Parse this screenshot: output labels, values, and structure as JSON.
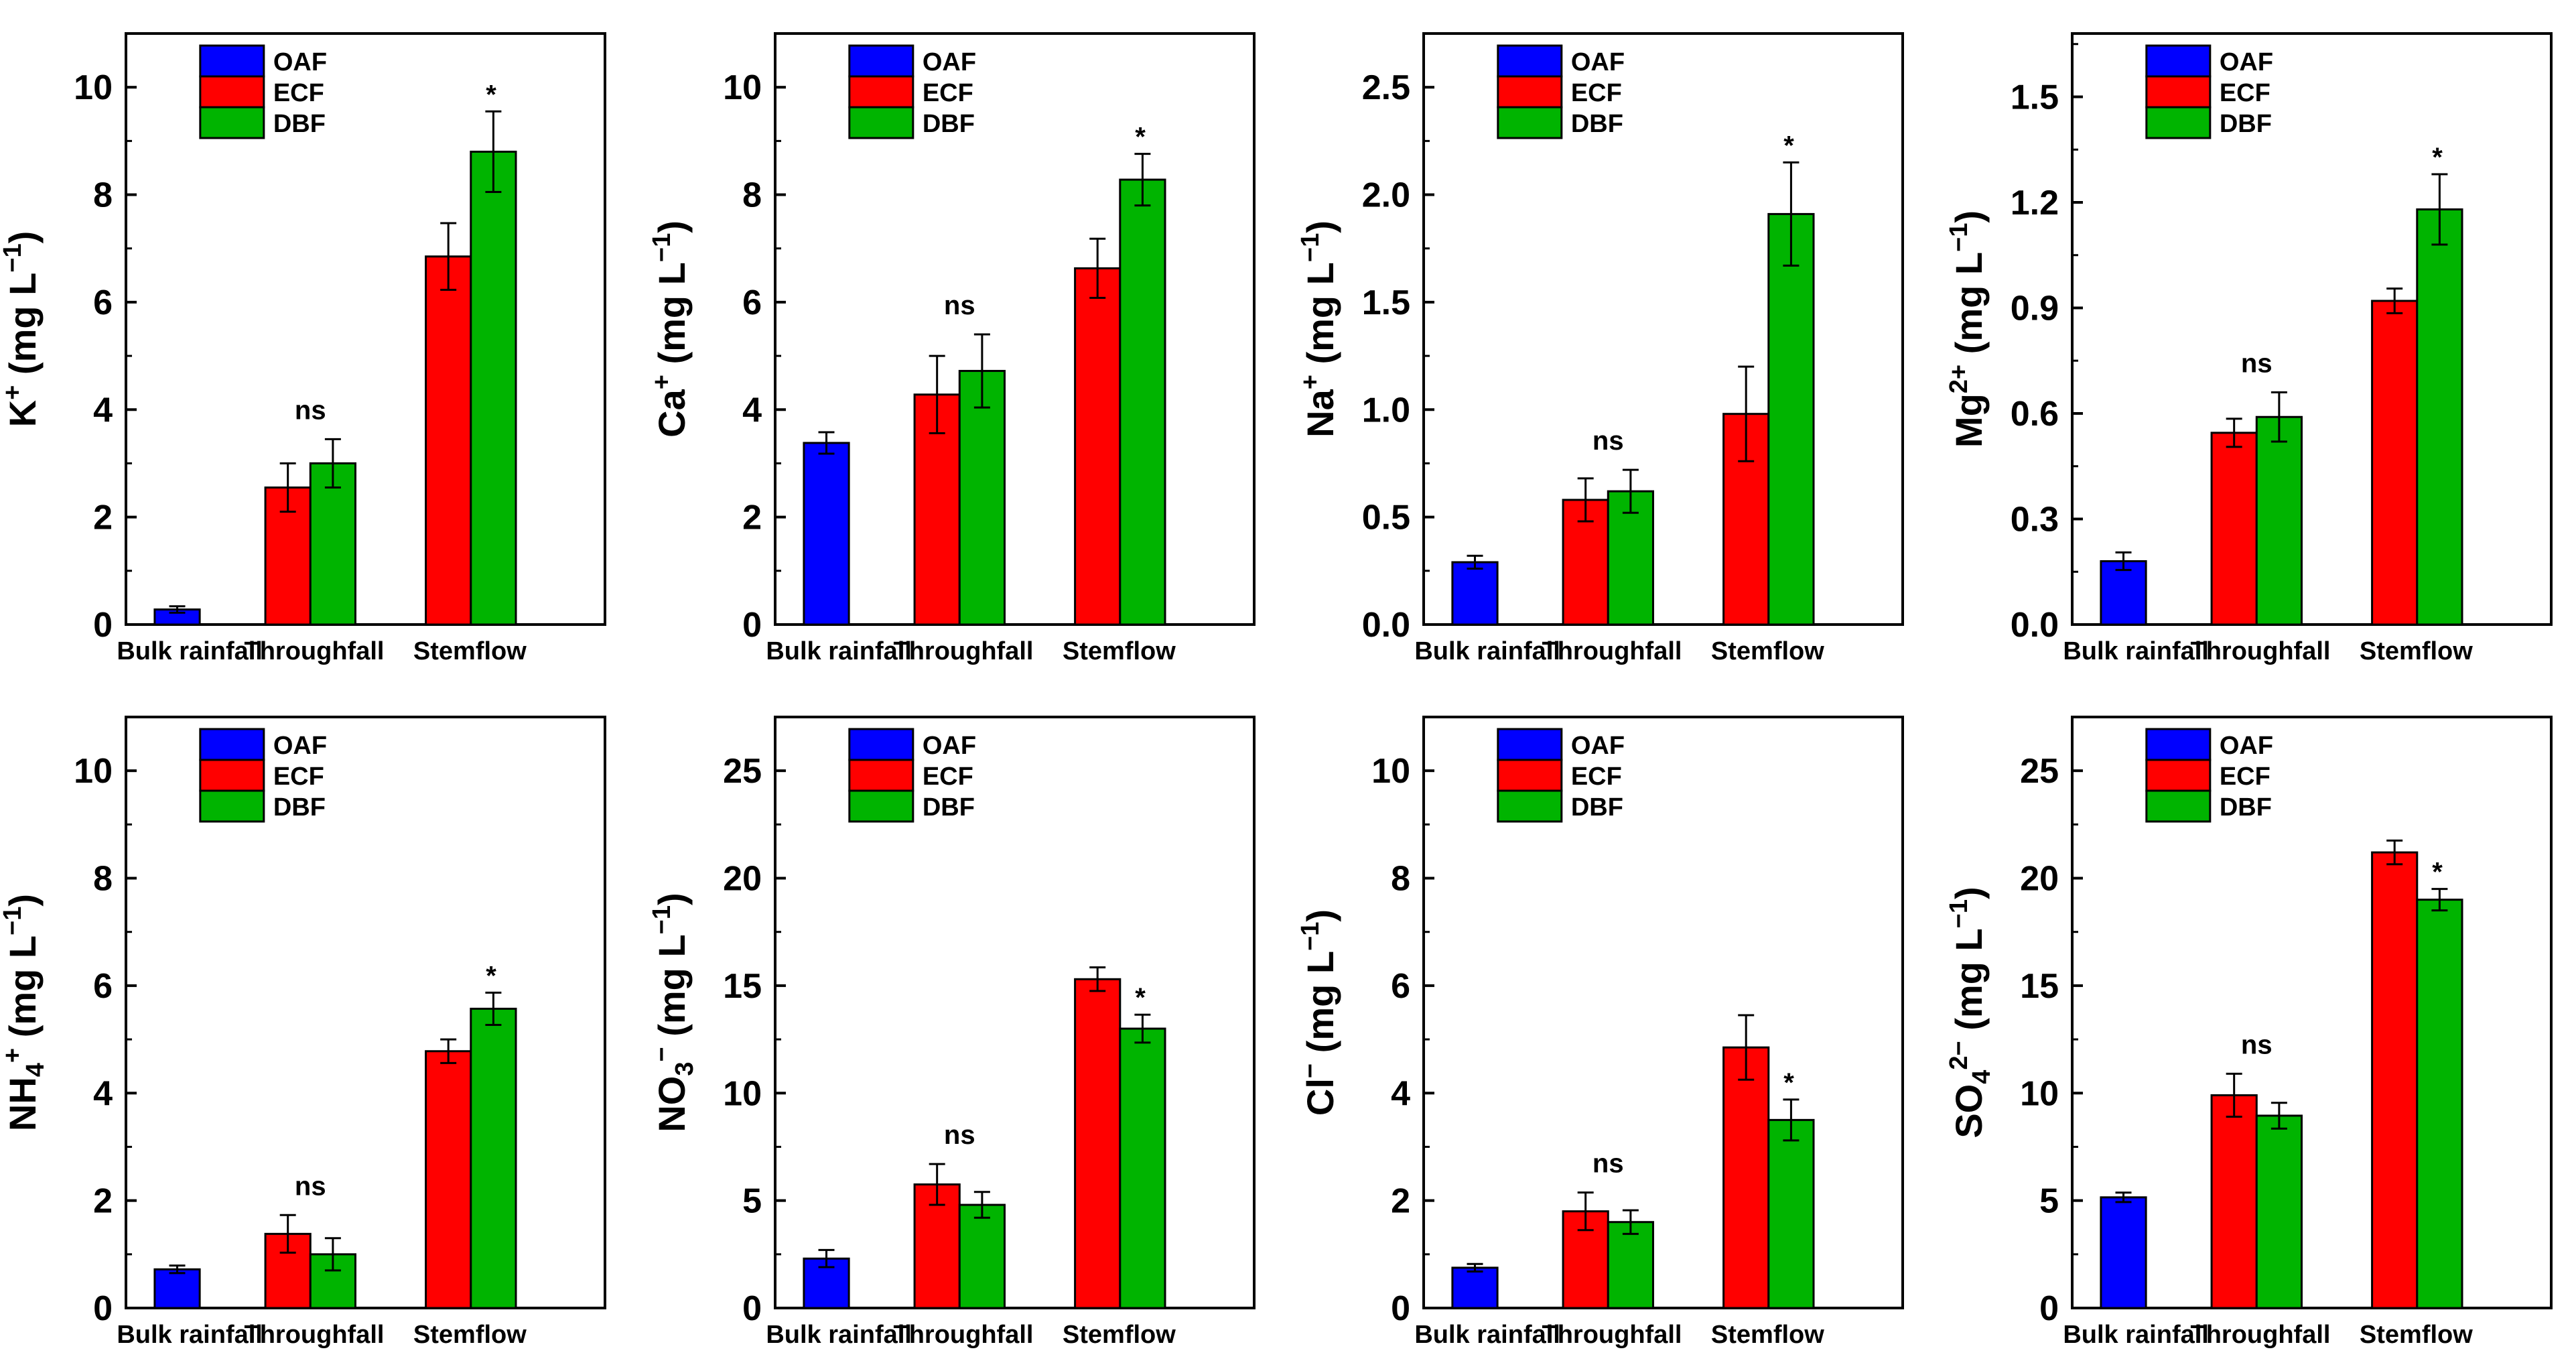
{
  "chart_data": [
    {
      "type": "bar",
      "id": "k",
      "ylabel": {
        "main": "K",
        "sub": "",
        "sup": "+",
        "unit": " (mg L",
        "unitSup": "−1",
        "close": ")"
      },
      "categories": [
        "Bulk rainfall",
        "Throughfall",
        "Stemflow"
      ],
      "legend": [
        "OAF",
        "ECF",
        "DBF"
      ],
      "colors": {
        "OAF": "#0000ff",
        "ECF": "#ff0000",
        "DBF": "#00b400"
      },
      "ylim": [
        0,
        11
      ],
      "yticks": [
        "0",
        "2",
        "4",
        "6",
        "8",
        "10"
      ],
      "ytickValues": [
        0,
        2,
        4,
        6,
        8,
        10
      ],
      "series": [
        {
          "name": "OAF",
          "values": [
            0.28,
            null,
            null
          ],
          "errors": [
            0.06,
            null,
            null
          ]
        },
        {
          "name": "ECF",
          "values": [
            null,
            2.55,
            6.85
          ],
          "errors": [
            null,
            0.45,
            0.62
          ]
        },
        {
          "name": "DBF",
          "values": [
            null,
            3.0,
            8.8
          ],
          "errors": [
            null,
            0.45,
            0.75
          ]
        }
      ],
      "significance": [
        null,
        "ns",
        "*"
      ]
    },
    {
      "type": "bar",
      "id": "ca",
      "ylabel": {
        "main": "Ca",
        "sub": "",
        "sup": "+",
        "unit": " (mg L",
        "unitSup": "−1",
        "close": ")"
      },
      "categories": [
        "Bulk rainfall",
        "Throughfall",
        "Stemflow"
      ],
      "legend": [
        "OAF",
        "ECF",
        "DBF"
      ],
      "colors": {
        "OAF": "#0000ff",
        "ECF": "#ff0000",
        "DBF": "#00b400"
      },
      "ylim": [
        0,
        11
      ],
      "yticks": [
        "0",
        "2",
        "4",
        "6",
        "8",
        "10"
      ],
      "ytickValues": [
        0,
        2,
        4,
        6,
        8,
        10
      ],
      "series": [
        {
          "name": "OAF",
          "values": [
            3.38,
            null,
            null
          ],
          "errors": [
            0.2,
            null,
            null
          ]
        },
        {
          "name": "ECF",
          "values": [
            null,
            4.28,
            6.63
          ],
          "errors": [
            null,
            0.72,
            0.55
          ]
        },
        {
          "name": "DBF",
          "values": [
            null,
            4.72,
            8.28
          ],
          "errors": [
            null,
            0.68,
            0.48
          ]
        }
      ],
      "significance": [
        null,
        "ns",
        "*"
      ]
    },
    {
      "type": "bar",
      "id": "na",
      "ylabel": {
        "main": "Na",
        "sub": "",
        "sup": "+",
        "unit": " (mg L",
        "unitSup": "−1",
        "close": ")"
      },
      "categories": [
        "Bulk rainfall",
        "Throughfall",
        "Stemflow"
      ],
      "legend": [
        "OAF",
        "ECF",
        "DBF"
      ],
      "colors": {
        "OAF": "#0000ff",
        "ECF": "#ff0000",
        "DBF": "#00b400"
      },
      "ylim": [
        0,
        2.75
      ],
      "yticks": [
        "0.0",
        "0.5",
        "1.0",
        "1.5",
        "2.0",
        "2.5"
      ],
      "ytickValues": [
        0,
        0.5,
        1.0,
        1.5,
        2.0,
        2.5
      ],
      "series": [
        {
          "name": "OAF",
          "values": [
            0.29,
            null,
            null
          ],
          "errors": [
            0.03,
            null,
            null
          ]
        },
        {
          "name": "ECF",
          "values": [
            null,
            0.58,
            0.98
          ],
          "errors": [
            null,
            0.1,
            0.22
          ]
        },
        {
          "name": "DBF",
          "values": [
            null,
            0.62,
            1.91
          ],
          "errors": [
            null,
            0.1,
            0.24
          ]
        }
      ],
      "significance": [
        null,
        "ns",
        "*"
      ]
    },
    {
      "type": "bar",
      "id": "mg",
      "ylabel": {
        "main": "Mg",
        "sub": "",
        "sup": "2+",
        "unit": " (mg L",
        "unitSup": "−1",
        "close": ")"
      },
      "categories": [
        "Bulk rainfall",
        "Throughfall",
        "Stemflow"
      ],
      "legend": [
        "OAF",
        "ECF",
        "DBF"
      ],
      "colors": {
        "OAF": "#0000ff",
        "ECF": "#ff0000",
        "DBF": "#00b400"
      },
      "ylim": [
        0,
        1.68
      ],
      "yticks": [
        "0.0",
        "0.3",
        "0.6",
        "0.9",
        "1.2",
        "1.5"
      ],
      "ytickValues": [
        0,
        0.3,
        0.6,
        0.9,
        1.2,
        1.5
      ],
      "series": [
        {
          "name": "OAF",
          "values": [
            0.18,
            null,
            null
          ],
          "errors": [
            0.025,
            null,
            null
          ]
        },
        {
          "name": "ECF",
          "values": [
            null,
            0.545,
            0.92
          ],
          "errors": [
            null,
            0.04,
            0.035
          ]
        },
        {
          "name": "DBF",
          "values": [
            null,
            0.59,
            1.18
          ],
          "errors": [
            null,
            0.07,
            0.1
          ]
        }
      ],
      "significance": [
        null,
        "ns",
        "*"
      ]
    },
    {
      "type": "bar",
      "id": "nh4",
      "ylabel": {
        "main": "NH",
        "sub": "4",
        "sup": "+",
        "unit": " (mg L",
        "unitSup": "−1",
        "close": ")"
      },
      "categories": [
        "Bulk rainfall",
        "Throughfall",
        "Stemflow"
      ],
      "legend": [
        "OAF",
        "ECF",
        "DBF"
      ],
      "colors": {
        "OAF": "#0000ff",
        "ECF": "#ff0000",
        "DBF": "#00b400"
      },
      "ylim": [
        0,
        11
      ],
      "yticks": [
        "0",
        "2",
        "4",
        "6",
        "8",
        "10"
      ],
      "ytickValues": [
        0,
        2,
        4,
        6,
        8,
        10
      ],
      "series": [
        {
          "name": "OAF",
          "values": [
            0.72,
            null,
            null
          ],
          "errors": [
            0.07,
            null,
            null
          ]
        },
        {
          "name": "ECF",
          "values": [
            null,
            1.38,
            4.78
          ],
          "errors": [
            null,
            0.35,
            0.22
          ]
        },
        {
          "name": "DBF",
          "values": [
            null,
            1.0,
            5.57
          ],
          "errors": [
            null,
            0.3,
            0.3
          ]
        }
      ],
      "significance": [
        null,
        "ns",
        "*"
      ]
    },
    {
      "type": "bar",
      "id": "no3",
      "ylabel": {
        "main": "NO",
        "sub": "3",
        "sup": "−",
        "unit": " (mg L",
        "unitSup": "−1",
        "close": ")"
      },
      "categories": [
        "Bulk rainfall",
        "Throughfall",
        "Stemflow"
      ],
      "legend": [
        "OAF",
        "ECF",
        "DBF"
      ],
      "colors": {
        "OAF": "#0000ff",
        "ECF": "#ff0000",
        "DBF": "#00b400"
      },
      "ylim": [
        0,
        27.5
      ],
      "yticks": [
        "0",
        "5",
        "10",
        "15",
        "20",
        "25"
      ],
      "ytickValues": [
        0,
        5,
        10,
        15,
        20,
        25
      ],
      "series": [
        {
          "name": "OAF",
          "values": [
            2.3,
            null,
            null
          ],
          "errors": [
            0.4,
            null,
            null
          ]
        },
        {
          "name": "ECF",
          "values": [
            null,
            5.75,
            15.3
          ],
          "errors": [
            null,
            0.95,
            0.55
          ]
        },
        {
          "name": "DBF",
          "values": [
            null,
            4.8,
            13.0
          ],
          "errors": [
            null,
            0.6,
            0.65
          ]
        }
      ],
      "significance": [
        null,
        "ns",
        "*"
      ]
    },
    {
      "type": "bar",
      "id": "cl",
      "ylabel": {
        "main": "Cl",
        "sub": "",
        "sup": "−",
        "unit": " (mg L",
        "unitSup": "−1",
        "close": ")"
      },
      "categories": [
        "Bulk rainfall",
        "Throughfall",
        "Stemflow"
      ],
      "legend": [
        "OAF",
        "ECF",
        "DBF"
      ],
      "colors": {
        "OAF": "#0000ff",
        "ECF": "#ff0000",
        "DBF": "#00b400"
      },
      "ylim": [
        0,
        11
      ],
      "yticks": [
        "0",
        "2",
        "4",
        "6",
        "8",
        "10"
      ],
      "ytickValues": [
        0,
        2,
        4,
        6,
        8,
        10
      ],
      "series": [
        {
          "name": "OAF",
          "values": [
            0.75,
            null,
            null
          ],
          "errors": [
            0.07,
            null,
            null
          ]
        },
        {
          "name": "ECF",
          "values": [
            null,
            1.8,
            4.85
          ],
          "errors": [
            null,
            0.35,
            0.6
          ]
        },
        {
          "name": "DBF",
          "values": [
            null,
            1.6,
            3.5
          ],
          "errors": [
            null,
            0.22,
            0.38
          ]
        }
      ],
      "significance": [
        null,
        "ns",
        "*"
      ]
    },
    {
      "type": "bar",
      "id": "so4",
      "ylabel": {
        "main": "SO",
        "sub": "4",
        "sup": "2−",
        "unit": " (mg L",
        "unitSup": "−1",
        "close": ")"
      },
      "categories": [
        "Bulk rainfall",
        "Throughfall",
        "Stemflow"
      ],
      "legend": [
        "OAF",
        "ECF",
        "DBF"
      ],
      "colors": {
        "OAF": "#0000ff",
        "ECF": "#ff0000",
        "DBF": "#00b400"
      },
      "ylim": [
        0,
        27.5
      ],
      "yticks": [
        "0",
        "5",
        "10",
        "15",
        "20",
        "25"
      ],
      "ytickValues": [
        0,
        5,
        10,
        15,
        20,
        25
      ],
      "series": [
        {
          "name": "OAF",
          "values": [
            5.15,
            null,
            null
          ],
          "errors": [
            0.22,
            null,
            null
          ]
        },
        {
          "name": "ECF",
          "values": [
            null,
            9.9,
            21.2
          ],
          "errors": [
            null,
            1.0,
            0.55
          ]
        },
        {
          "name": "DBF",
          "values": [
            null,
            8.95,
            19.0
          ],
          "errors": [
            null,
            0.6,
            0.5
          ]
        }
      ],
      "significance": [
        null,
        "ns",
        "*"
      ]
    }
  ]
}
